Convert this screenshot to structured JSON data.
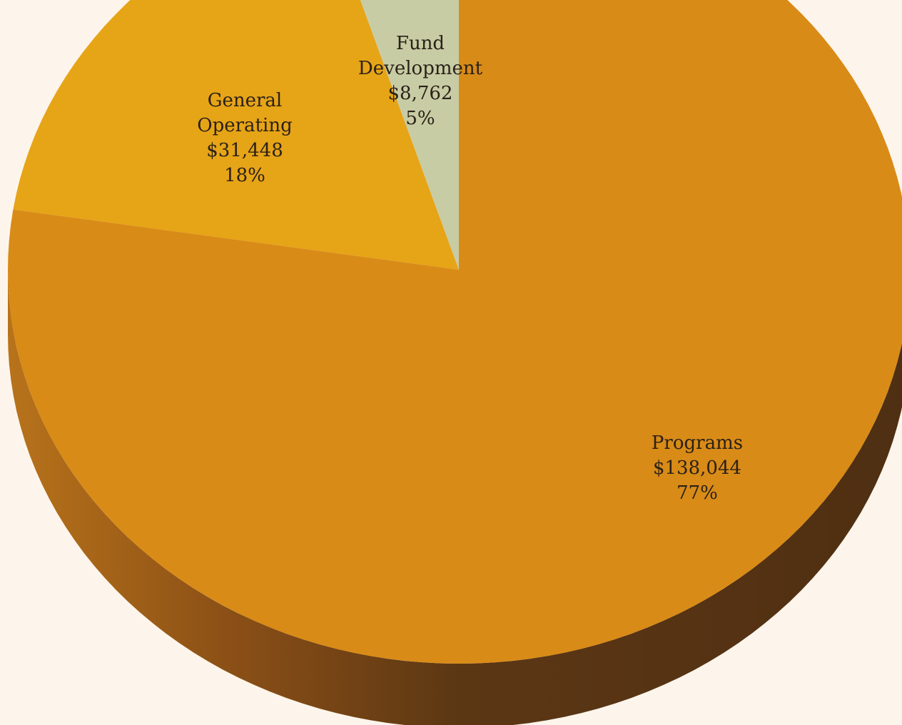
{
  "chart_data": {
    "type": "pie",
    "title": "",
    "units": "$",
    "slices": [
      {
        "name": "Programs",
        "value": 138044,
        "value_label": "$138,044",
        "percent_label": "77%",
        "color": "#d98b17"
      },
      {
        "name": "General Operating",
        "value": 31448,
        "value_label": "$31,448",
        "percent_label": "18%",
        "color": "#e6a417"
      },
      {
        "name": "Fund Development",
        "value": 8762,
        "value_label": "$8,762",
        "percent_label": "5%",
        "color": "#c8cca4"
      }
    ],
    "style": "3d-tilted-pie",
    "legend": "none",
    "label_placement": "inside-slices"
  },
  "colors": {
    "background": "#fdf5eb",
    "side_dark": "#533114",
    "side_light": "#9a5a13"
  }
}
